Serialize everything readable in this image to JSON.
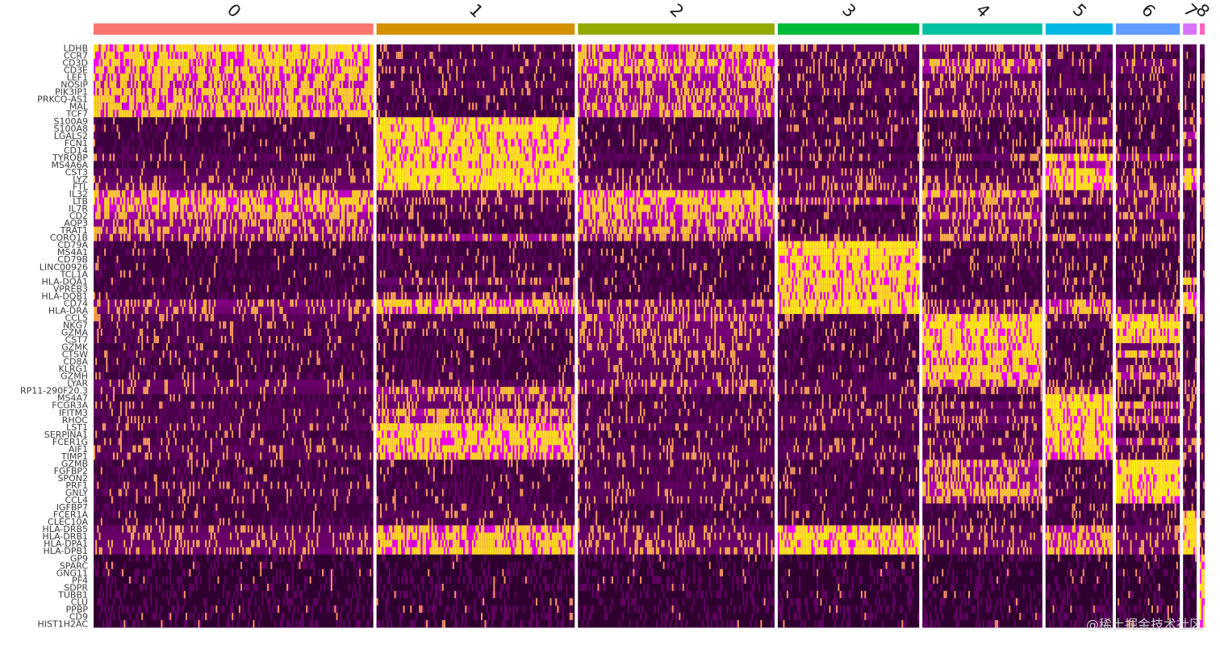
{
  "chart_data": {
    "type": "heatmap",
    "clusters": [
      {
        "id": "0",
        "color": "#F8766D",
        "cells": 350
      },
      {
        "id": "1",
        "color": "#D39200",
        "cells": 248
      },
      {
        "id": "2",
        "color": "#93AA00",
        "cells": 246
      },
      {
        "id": "3",
        "color": "#00BA38",
        "cells": 177
      },
      {
        "id": "4",
        "color": "#00C19F",
        "cells": 150
      },
      {
        "id": "5",
        "color": "#00B9E3",
        "cells": 84
      },
      {
        "id": "6",
        "color": "#619CFF",
        "cells": 80
      },
      {
        "id": "7",
        "color": "#DB72FB",
        "cells": 17
      },
      {
        "id": "8",
        "color": "#FF61C3",
        "cells": 6
      }
    ],
    "genes": [
      "LDHB",
      "CCR7",
      "CD3D",
      "CD3E",
      "LEF1",
      "NOSIP",
      "PIK3IP1",
      "PRKCQ-AS1",
      "MAL",
      "TCF7",
      "S100A9",
      "S100A8",
      "LGALS2",
      "FCN1",
      "CD14",
      "TYROBP",
      "MS4A6A",
      "CST3",
      "LYZ",
      "FTL",
      "IL32",
      "LTB",
      "IL7R",
      "CD2",
      "AQP3",
      "TRAT1",
      "CORO1B",
      "CD79A",
      "MS4A1",
      "CD79B",
      "LINC00926",
      "TCL1A",
      "HLA-DQA1",
      "VPREB3",
      "HLA-DQB1",
      "CD74",
      "HLA-DRA",
      "CCL5",
      "NKG7",
      "GZMA",
      "CST7",
      "GZMK",
      "CTSW",
      "CD8A",
      "KLRG1",
      "GZMH",
      "LYAR",
      "RP11-290F20.3",
      "MS4A7",
      "FCGR3A",
      "IFITM3",
      "RHOC",
      "LST1",
      "SERPINA1",
      "FCER1G",
      "AIF1",
      "TIMP1",
      "GZMB",
      "FGFBP2",
      "SPON2",
      "PRF1",
      "GNLY",
      "CCL4",
      "IGFBP7",
      "FCER1A",
      "CLEC10A",
      "HLA-DRB5",
      "HLA-DRB1",
      "HLA-DPA1",
      "HLA-DPB1",
      "GP9",
      "SPARC",
      "GNG11",
      "PF4",
      "SDPR",
      "TUBB1",
      "CLU",
      "PPBP",
      "CD9",
      "HIST1H2AC"
    ],
    "expression_level": [
      [
        0.85,
        0.15,
        0.7,
        0.25,
        0.4,
        0.2,
        0.25,
        0.15,
        0.2
      ],
      [
        0.8,
        0.1,
        0.6,
        0.15,
        0.3,
        0.1,
        0.1,
        0.1,
        0.1
      ],
      [
        0.8,
        0.2,
        0.75,
        0.2,
        0.6,
        0.2,
        0.35,
        0.1,
        0.1
      ],
      [
        0.75,
        0.15,
        0.7,
        0.15,
        0.55,
        0.15,
        0.3,
        0.1,
        0.1
      ],
      [
        0.75,
        0.1,
        0.55,
        0.15,
        0.25,
        0.1,
        0.1,
        0.1,
        0.1
      ],
      [
        0.65,
        0.2,
        0.55,
        0.2,
        0.35,
        0.2,
        0.2,
        0.15,
        0.15
      ],
      [
        0.7,
        0.15,
        0.5,
        0.2,
        0.3,
        0.2,
        0.15,
        0.1,
        0.1
      ],
      [
        0.7,
        0.1,
        0.5,
        0.1,
        0.2,
        0.1,
        0.1,
        0.1,
        0.1
      ],
      [
        0.7,
        0.1,
        0.6,
        0.1,
        0.3,
        0.1,
        0.1,
        0.1,
        0.1
      ],
      [
        0.75,
        0.1,
        0.6,
        0.1,
        0.35,
        0.1,
        0.1,
        0.1,
        0.1
      ],
      [
        0.1,
        0.95,
        0.1,
        0.15,
        0.1,
        0.4,
        0.1,
        0.3,
        0.1
      ],
      [
        0.1,
        0.95,
        0.1,
        0.15,
        0.1,
        0.3,
        0.1,
        0.25,
        0.1
      ],
      [
        0.1,
        0.9,
        0.1,
        0.1,
        0.1,
        0.25,
        0.1,
        0.6,
        0.1
      ],
      [
        0.1,
        0.9,
        0.1,
        0.15,
        0.1,
        0.6,
        0.1,
        0.3,
        0.1
      ],
      [
        0.1,
        0.9,
        0.1,
        0.1,
        0.1,
        0.2,
        0.1,
        0.2,
        0.1
      ],
      [
        0.2,
        0.9,
        0.2,
        0.2,
        0.3,
        0.9,
        0.5,
        0.4,
        0.2
      ],
      [
        0.1,
        0.85,
        0.1,
        0.1,
        0.1,
        0.55,
        0.1,
        0.2,
        0.1
      ],
      [
        0.2,
        0.95,
        0.2,
        0.2,
        0.2,
        0.9,
        0.2,
        0.9,
        0.3
      ],
      [
        0.25,
        0.95,
        0.25,
        0.25,
        0.25,
        0.9,
        0.25,
        0.85,
        0.25
      ],
      [
        0.3,
        0.95,
        0.3,
        0.3,
        0.3,
        0.9,
        0.35,
        0.8,
        0.3
      ],
      [
        0.65,
        0.25,
        0.8,
        0.2,
        0.7,
        0.2,
        0.4,
        0.1,
        0.1
      ],
      [
        0.75,
        0.3,
        0.75,
        0.5,
        0.4,
        0.35,
        0.3,
        0.2,
        0.2
      ],
      [
        0.7,
        0.15,
        0.7,
        0.1,
        0.35,
        0.1,
        0.2,
        0.1,
        0.1
      ],
      [
        0.55,
        0.15,
        0.65,
        0.15,
        0.55,
        0.15,
        0.4,
        0.1,
        0.1
      ],
      [
        0.45,
        0.1,
        0.6,
        0.1,
        0.35,
        0.1,
        0.15,
        0.1,
        0.1
      ],
      [
        0.5,
        0.1,
        0.55,
        0.1,
        0.3,
        0.1,
        0.2,
        0.1,
        0.1
      ],
      [
        0.4,
        0.5,
        0.45,
        0.3,
        0.4,
        0.45,
        0.35,
        0.3,
        0.2
      ],
      [
        0.1,
        0.1,
        0.1,
        0.95,
        0.1,
        0.1,
        0.1,
        0.1,
        0.1
      ],
      [
        0.1,
        0.1,
        0.1,
        0.95,
        0.1,
        0.1,
        0.1,
        0.1,
        0.1
      ],
      [
        0.1,
        0.15,
        0.1,
        0.9,
        0.15,
        0.15,
        0.1,
        0.1,
        0.1
      ],
      [
        0.1,
        0.1,
        0.1,
        0.85,
        0.1,
        0.1,
        0.1,
        0.1,
        0.1
      ],
      [
        0.1,
        0.1,
        0.1,
        0.85,
        0.1,
        0.1,
        0.1,
        0.1,
        0.1
      ],
      [
        0.1,
        0.3,
        0.1,
        0.85,
        0.1,
        0.2,
        0.1,
        0.9,
        0.1
      ],
      [
        0.1,
        0.1,
        0.1,
        0.8,
        0.1,
        0.1,
        0.1,
        0.1,
        0.1
      ],
      [
        0.1,
        0.3,
        0.1,
        0.8,
        0.1,
        0.2,
        0.1,
        0.85,
        0.1
      ],
      [
        0.4,
        0.75,
        0.4,
        0.95,
        0.35,
        0.65,
        0.4,
        0.9,
        0.3
      ],
      [
        0.35,
        0.7,
        0.35,
        0.95,
        0.35,
        0.65,
        0.4,
        0.9,
        0.3
      ],
      [
        0.2,
        0.15,
        0.5,
        0.15,
        0.9,
        0.2,
        0.85,
        0.1,
        0.1
      ],
      [
        0.15,
        0.2,
        0.35,
        0.15,
        0.95,
        0.25,
        0.95,
        0.1,
        0.1
      ],
      [
        0.15,
        0.1,
        0.35,
        0.1,
        0.9,
        0.1,
        0.8,
        0.1,
        0.1
      ],
      [
        0.15,
        0.1,
        0.35,
        0.1,
        0.85,
        0.1,
        0.8,
        0.1,
        0.1
      ],
      [
        0.1,
        0.1,
        0.3,
        0.1,
        0.8,
        0.1,
        0.3,
        0.1,
        0.1
      ],
      [
        0.15,
        0.1,
        0.3,
        0.1,
        0.8,
        0.1,
        0.7,
        0.1,
        0.1
      ],
      [
        0.1,
        0.1,
        0.25,
        0.1,
        0.75,
        0.1,
        0.2,
        0.1,
        0.1
      ],
      [
        0.1,
        0.1,
        0.25,
        0.1,
        0.75,
        0.1,
        0.4,
        0.1,
        0.1
      ],
      [
        0.1,
        0.1,
        0.2,
        0.1,
        0.8,
        0.1,
        0.6,
        0.1,
        0.1
      ],
      [
        0.3,
        0.2,
        0.4,
        0.2,
        0.6,
        0.2,
        0.3,
        0.2,
        0.2
      ],
      [
        0.25,
        0.55,
        0.3,
        0.2,
        0.25,
        0.4,
        0.2,
        0.2,
        0.2
      ],
      [
        0.1,
        0.4,
        0.1,
        0.1,
        0.1,
        0.95,
        0.1,
        0.2,
        0.1
      ],
      [
        0.15,
        0.3,
        0.15,
        0.15,
        0.3,
        0.95,
        0.6,
        0.2,
        0.1
      ],
      [
        0.15,
        0.6,
        0.15,
        0.2,
        0.2,
        0.9,
        0.3,
        0.3,
        0.2
      ],
      [
        0.15,
        0.5,
        0.15,
        0.2,
        0.35,
        0.9,
        0.6,
        0.2,
        0.1
      ],
      [
        0.2,
        0.85,
        0.2,
        0.2,
        0.2,
        0.9,
        0.2,
        0.3,
        0.2
      ],
      [
        0.1,
        0.85,
        0.1,
        0.1,
        0.1,
        0.85,
        0.1,
        0.2,
        0.1
      ],
      [
        0.15,
        0.8,
        0.15,
        0.15,
        0.3,
        0.9,
        0.5,
        0.4,
        0.2
      ],
      [
        0.2,
        0.8,
        0.2,
        0.2,
        0.2,
        0.85,
        0.2,
        0.3,
        0.2
      ],
      [
        0.2,
        0.75,
        0.2,
        0.2,
        0.2,
        0.8,
        0.2,
        0.3,
        0.2
      ],
      [
        0.1,
        0.1,
        0.15,
        0.1,
        0.6,
        0.1,
        0.95,
        0.1,
        0.1
      ],
      [
        0.1,
        0.1,
        0.15,
        0.1,
        0.5,
        0.1,
        0.95,
        0.1,
        0.1
      ],
      [
        0.1,
        0.1,
        0.15,
        0.1,
        0.45,
        0.1,
        0.9,
        0.1,
        0.1
      ],
      [
        0.15,
        0.1,
        0.2,
        0.1,
        0.6,
        0.1,
        0.95,
        0.1,
        0.1
      ],
      [
        0.15,
        0.1,
        0.2,
        0.1,
        0.6,
        0.1,
        0.95,
        0.1,
        0.1
      ],
      [
        0.1,
        0.1,
        0.2,
        0.1,
        0.45,
        0.1,
        0.85,
        0.1,
        0.1
      ],
      [
        0.1,
        0.15,
        0.1,
        0.1,
        0.1,
        0.1,
        0.1,
        0.1,
        0.1
      ],
      [
        0.1,
        0.2,
        0.1,
        0.1,
        0.1,
        0.1,
        0.1,
        0.95,
        0.1
      ],
      [
        0.1,
        0.15,
        0.1,
        0.1,
        0.1,
        0.1,
        0.1,
        0.9,
        0.1
      ],
      [
        0.25,
        0.7,
        0.25,
        0.85,
        0.2,
        0.6,
        0.25,
        0.9,
        0.2
      ],
      [
        0.3,
        0.75,
        0.3,
        0.9,
        0.25,
        0.65,
        0.3,
        0.95,
        0.2
      ],
      [
        0.3,
        0.75,
        0.3,
        0.85,
        0.25,
        0.65,
        0.3,
        0.95,
        0.2
      ],
      [
        0.35,
        0.8,
        0.35,
        0.9,
        0.3,
        0.7,
        0.35,
        0.95,
        0.2
      ],
      [
        0.03,
        0.03,
        0.03,
        0.03,
        0.03,
        0.03,
        0.03,
        0.03,
        0.95
      ],
      [
        0.03,
        0.03,
        0.03,
        0.03,
        0.03,
        0.03,
        0.03,
        0.03,
        0.95
      ],
      [
        0.03,
        0.03,
        0.03,
        0.03,
        0.03,
        0.03,
        0.03,
        0.03,
        0.95
      ],
      [
        0.03,
        0.03,
        0.03,
        0.03,
        0.03,
        0.03,
        0.03,
        0.03,
        0.95
      ],
      [
        0.03,
        0.03,
        0.03,
        0.03,
        0.03,
        0.03,
        0.03,
        0.03,
        0.95
      ],
      [
        0.03,
        0.03,
        0.03,
        0.03,
        0.03,
        0.03,
        0.03,
        0.03,
        0.95
      ],
      [
        0.03,
        0.03,
        0.03,
        0.03,
        0.03,
        0.03,
        0.03,
        0.03,
        0.95
      ],
      [
        0.04,
        0.04,
        0.04,
        0.04,
        0.04,
        0.04,
        0.04,
        0.04,
        0.95
      ],
      [
        0.03,
        0.03,
        0.03,
        0.03,
        0.03,
        0.03,
        0.03,
        0.03,
        0.95
      ],
      [
        0.03,
        0.03,
        0.03,
        0.03,
        0.03,
        0.03,
        0.03,
        0.03,
        0.95
      ]
    ],
    "colormap": {
      "low": "#000000",
      "mid": "#FF00FF",
      "high": "#FFFF00"
    },
    "grid": false
  },
  "watermark": "@稀土掘金技术社区"
}
